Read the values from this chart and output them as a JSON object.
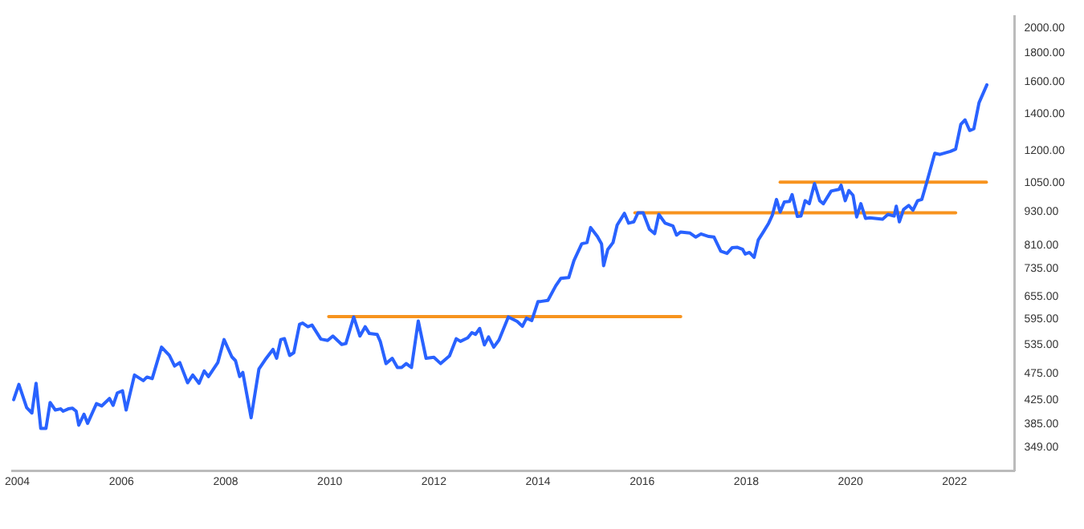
{
  "chart_data": {
    "type": "line",
    "log": "y",
    "grid": false,
    "legend": false,
    "marker": "none",
    "line_style": "solid",
    "xlim": [
      2003.9,
      2023.15
    ],
    "xticks": [
      2004,
      2006,
      2008,
      2010,
      2012,
      2014,
      2016,
      2018,
      2020,
      2022
    ],
    "ylim": [
      317,
      2100
    ],
    "yticks": [
      {
        "value": 349,
        "label": "349.00"
      },
      {
        "value": 385,
        "label": "385.00"
      },
      {
        "value": 425,
        "label": "425.00"
      },
      {
        "value": 475,
        "label": "475.00"
      },
      {
        "value": 535,
        "label": "535.00"
      },
      {
        "value": 595,
        "label": "595.00"
      },
      {
        "value": 655,
        "label": "655.00"
      },
      {
        "value": 735,
        "label": "735.00"
      },
      {
        "value": 810,
        "label": "810.00"
      },
      {
        "value": 930,
        "label": "930.00"
      },
      {
        "value": 1050,
        "label": "1050.00"
      },
      {
        "value": 1200,
        "label": "1200.00"
      },
      {
        "value": 1400,
        "label": "1400.00"
      },
      {
        "value": 1600,
        "label": "1600.00"
      },
      {
        "value": 1800,
        "label": "1800.00"
      },
      {
        "value": 2000,
        "label": "2000.00"
      }
    ],
    "series": [
      {
        "color": "#2962ff",
        "x": [
          2003.93,
          2004.03,
          2004.18,
          2004.28,
          2004.36,
          2004.45,
          2004.55,
          2004.63,
          2004.73,
          2004.83,
          2004.88,
          2004.98,
          2005.06,
          2005.13,
          2005.18,
          2005.28,
          2005.35,
          2005.52,
          2005.62,
          2005.77,
          2005.84,
          2005.92,
          2006.02,
          2006.09,
          2006.25,
          2006.42,
          2006.49,
          2006.59,
          2006.77,
          2006.92,
          2007.02,
          2007.12,
          2007.27,
          2007.37,
          2007.49,
          2007.59,
          2007.67,
          2007.85,
          2007.97,
          2008.12,
          2008.19,
          2008.27,
          2008.33,
          2008.49,
          2008.64,
          2008.76,
          2008.91,
          2008.98,
          2009.06,
          2009.13,
          2009.23,
          2009.31,
          2009.42,
          2009.48,
          2009.58,
          2009.66,
          2009.83,
          2009.96,
          2010.06,
          2010.23,
          2010.31,
          2010.46,
          2010.58,
          2010.68,
          2010.76,
          2010.91,
          2010.97,
          2011.08,
          2011.2,
          2011.3,
          2011.38,
          2011.47,
          2011.57,
          2011.7,
          2011.85,
          2012.0,
          2012.13,
          2012.3,
          2012.43,
          2012.51,
          2012.65,
          2012.73,
          2012.8,
          2012.88,
          2012.97,
          2013.05,
          2013.15,
          2013.25,
          2013.43,
          2013.6,
          2013.7,
          2013.78,
          2013.88,
          2014.0,
          2014.05,
          2014.19,
          2014.34,
          2014.44,
          2014.59,
          2014.69,
          2014.84,
          2014.94,
          2015.01,
          2015.14,
          2015.22,
          2015.26,
          2015.34,
          2015.44,
          2015.52,
          2015.66,
          2015.74,
          2015.84,
          2015.92,
          2016.02,
          2016.14,
          2016.24,
          2016.32,
          2016.44,
          2016.59,
          2016.66,
          2016.74,
          2016.92,
          2017.03,
          2017.13,
          2017.28,
          2017.38,
          2017.51,
          2017.63,
          2017.73,
          2017.83,
          2017.93,
          2017.98,
          2018.06,
          2018.15,
          2018.23,
          2018.33,
          2018.43,
          2018.5,
          2018.58,
          2018.65,
          2018.73,
          2018.83,
          2018.88,
          2018.98,
          2019.05,
          2019.13,
          2019.21,
          2019.31,
          2019.41,
          2019.48,
          2019.63,
          2019.78,
          2019.82,
          2019.9,
          2019.97,
          2020.05,
          2020.12,
          2020.2,
          2020.29,
          2020.37,
          2020.62,
          2020.72,
          2020.84,
          2020.88,
          2020.94,
          2021.02,
          2021.12,
          2021.2,
          2021.29,
          2021.37,
          2021.47,
          2021.62,
          2021.72,
          2021.92,
          2022.02,
          2022.12,
          2022.2,
          2022.29,
          2022.37,
          2022.47,
          2022.62
        ],
        "values": [
          426,
          454,
          412,
          403,
          456,
          378,
          378,
          421,
          408,
          410,
          406,
          410,
          411,
          406,
          383,
          401,
          386,
          419,
          415,
          428,
          416,
          438,
          442,
          408,
          472,
          461,
          468,
          465,
          530,
          512,
          490,
          497,
          457,
          472,
          456,
          480,
          469,
          497,
          547,
          509,
          501,
          469,
          477,
          395,
          484,
          503,
          525,
          506,
          547,
          549,
          512,
          518,
          583,
          586,
          577,
          581,
          548,
          545,
          555,
          536,
          538,
          601,
          555,
          577,
          561,
          559,
          543,
          495,
          506,
          487,
          487,
          495,
          487,
          591,
          506,
          508,
          495,
          511,
          549,
          543,
          551,
          563,
          559,
          573,
          535,
          553,
          530,
          546,
          601,
          590,
          578,
          598,
          592,
          641,
          641,
          644,
          684,
          706,
          708,
          760,
          815,
          819,
          872,
          840,
          815,
          744,
          796,
          819,
          881,
          925,
          888,
          893,
          927,
          927,
          866,
          850,
          921,
          888,
          878,
          845,
          856,
          852,
          838,
          849,
          840,
          838,
          790,
          783,
          802,
          803,
          796,
          781,
          786,
          770,
          828,
          857,
          888,
          918,
          980,
          930,
          970,
          972,
          1000,
          913,
          915,
          975,
          963,
          1047,
          975,
          963,
          1015,
          1022,
          1040,
          975,
          1017,
          997,
          911,
          963,
          906,
          908,
          903,
          921,
          915,
          953,
          893,
          940,
          956,
          937,
          975,
          980,
          1056,
          1188,
          1182,
          1197,
          1208,
          1340,
          1365,
          1306,
          1315,
          1466,
          1579
        ]
      },
      {
        "color": "#f7931e",
        "x": [
          2009.98,
          2016.74
        ],
        "values": [
          602,
          602
        ]
      },
      {
        "color": "#f7931e",
        "x": [
          2015.86,
          2022.02
        ],
        "values": [
          927,
          927
        ]
      },
      {
        "color": "#f7931e",
        "x": [
          2018.65,
          2022.61
        ],
        "values": [
          1053,
          1053
        ]
      }
    ]
  }
}
